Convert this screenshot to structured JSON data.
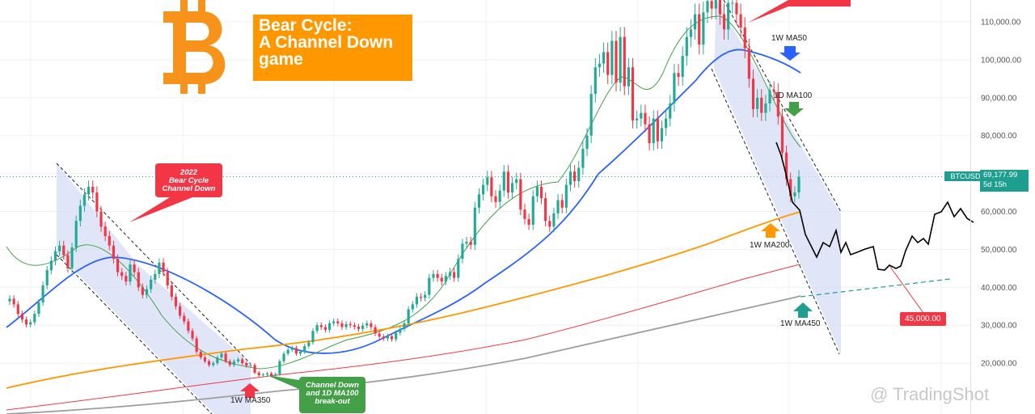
{
  "chart_data": {
    "type": "candlestick",
    "symbol": "BTCUSD",
    "current_price": "69,177.99",
    "time_to_close": "5d 15h",
    "title": "Bear Cycle: A Channel Down game",
    "title_lines": [
      "Bear Cycle:",
      "A Channel Down",
      "game"
    ],
    "y_axis": {
      "ticks": [
        "110,000.00",
        "100,000.00",
        "90,000.00",
        "80,000.00",
        "70,000.00",
        "60,000.00",
        "50,000.00",
        "40,000.00",
        "30,000.00",
        "20,000.00"
      ],
      "ylim": [
        14000,
        115500
      ]
    },
    "ohlc_close": [
      37000,
      35500,
      33000,
      31500,
      30200,
      30800,
      33000,
      36000,
      40500,
      44500,
      47000,
      49500,
      51000,
      48500,
      45000,
      50500,
      57500,
      61500,
      64500,
      66500,
      65000,
      60000,
      56000,
      53500,
      51000,
      47500,
      44000,
      43000,
      41500,
      46000,
      44000,
      40000,
      38000,
      39500,
      42000,
      43500,
      46500,
      44000,
      40500,
      37500,
      35000,
      32500,
      31000,
      28500,
      26500,
      23000,
      21500,
      20500,
      19500,
      20000,
      21500,
      22500,
      20500,
      19500,
      20500,
      21000,
      20000,
      19300,
      19500,
      17500,
      16800,
      17000,
      17300,
      16700,
      17100,
      20500,
      22500,
      23500,
      24000,
      22500,
      23000,
      24500,
      25500,
      28500,
      30000,
      29500,
      28800,
      30500,
      31000,
      30500,
      29500,
      30300,
      30000,
      29600,
      29000,
      29900,
      30500,
      29500,
      27800,
      27000,
      26500,
      27100,
      26300,
      28000,
      29000,
      30500,
      34200,
      35500,
      37500,
      37200,
      38000,
      42500,
      43500,
      42500,
      41500,
      43000,
      44000,
      42500,
      47500,
      51500,
      52000,
      51200,
      61000,
      64500,
      67000,
      69000,
      64000,
      62500,
      65500,
      70500,
      65000,
      67500,
      68500,
      60500,
      58000,
      56500,
      64000,
      66500,
      63500,
      57500,
      56000,
      59500,
      63000,
      61000,
      67000,
      70500,
      68000,
      71500,
      76500,
      80000,
      91000,
      98000,
      99000,
      102000,
      96000,
      105000,
      94000,
      106000,
      93000,
      98000,
      84000,
      84500,
      86000,
      83000,
      78000,
      84500,
      78500,
      82000,
      84500,
      88500,
      96500,
      95500,
      101000,
      106000,
      108000,
      112000,
      104000,
      112500,
      115500,
      113500,
      118000,
      112000,
      108000,
      115000,
      115000,
      112000,
      108500,
      103000,
      95000,
      87000,
      90000,
      86000,
      88500,
      92000,
      91500,
      85000,
      75500,
      68500,
      64000,
      65000,
      69178
    ],
    "moving_averages": [
      {
        "name": "1W MA50",
        "color": "#2962ff"
      },
      {
        "name": "1D MA100",
        "color": "#43a047"
      },
      {
        "name": "1W MA200",
        "color": "#ff9800"
      },
      {
        "name": "1W MA350",
        "color": "#f23645"
      },
      {
        "name": "1W MA450",
        "color": "#9e9e9e"
      }
    ],
    "projection": {
      "color": "#000000"
    },
    "annotations": {
      "bear_2022": "2022 Bear Cycle Channel Down",
      "breakout": "Channel Down and 1D MA100 break-out",
      "target_price": "45,000.00"
    },
    "colors": {
      "up": "#22ab94",
      "down": "#f23645",
      "channel_fill": "#d6dcf5",
      "banner": "#ff9800"
    }
  },
  "labels": {
    "ma50": "1W MA50",
    "ma100": "1D MA100",
    "ma200": "1W MA200",
    "ma350": "1W MA350",
    "ma450": "1W MA450",
    "ticker": "BTCUSD",
    "price": "69,177.99",
    "timer": "5d 15h",
    "target": "45,000.00",
    "watermark": "@ TradingShot",
    "bear_2022_line1": "2022",
    "bear_2022_line2": "Bear Cycle",
    "bear_2022_line3": "Channel Down",
    "breakout_line1": "Channel Down",
    "breakout_line2": "and 1D MA100",
    "breakout_line3": "break-out"
  }
}
